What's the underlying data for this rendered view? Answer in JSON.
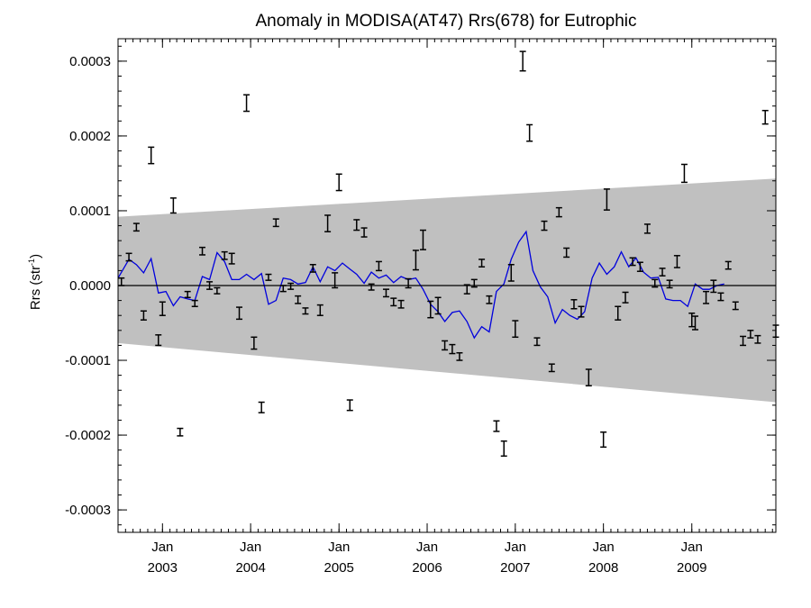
{
  "chart_data": {
    "type": "scatter",
    "title": "Anomaly in MODISA(AT47) Rrs(678) for Eutrophic",
    "ylabel": "Rrs (str",
    "ylabel_sup": "-1",
    "ylabel_close": ")",
    "xlabel": "",
    "xlim": [
      "2002-07-01",
      "2009-12-15"
    ],
    "ylim": [
      -0.00033,
      0.00033
    ],
    "y_ticks": [
      {
        "value": 0.0003,
        "label": "0.0003"
      },
      {
        "value": 0.0002,
        "label": "0.0002"
      },
      {
        "value": 0.0001,
        "label": "0.0001"
      },
      {
        "value": 0.0,
        "label": "0.0000"
      },
      {
        "value": -0.0001,
        "label": "-0.0001"
      },
      {
        "value": -0.0002,
        "label": "-0.0002"
      },
      {
        "value": -0.0003,
        "label": "-0.0003"
      }
    ],
    "x_ticks": [
      {
        "date": "2003-01-01",
        "month": "Jan",
        "year": "2003"
      },
      {
        "date": "2004-01-01",
        "month": "Jan",
        "year": "2004"
      },
      {
        "date": "2005-01-01",
        "month": "Jan",
        "year": "2005"
      },
      {
        "date": "2006-01-01",
        "month": "Jan",
        "year": "2006"
      },
      {
        "date": "2007-01-01",
        "month": "Jan",
        "year": "2007"
      },
      {
        "date": "2008-01-01",
        "month": "Jan",
        "year": "2008"
      },
      {
        "date": "2009-01-01",
        "month": "Jan",
        "year": "2009"
      }
    ],
    "grid": false,
    "zero_line": true,
    "confidence_band": {
      "start": {
        "date": "2002-07-01",
        "upper": 9.2e-05,
        "lower": -7.7e-05
      },
      "end": {
        "date": "2009-12-15",
        "upper": 0.000143,
        "lower": -0.000156
      },
      "color": "#c0c0c0"
    },
    "series": [
      {
        "kind": "errorbar",
        "color": "#000000",
        "points": [
          {
            "date": "2002-07-15",
            "y": 5e-06,
            "err": 5e-06
          },
          {
            "date": "2002-08-15",
            "y": 3.8e-05,
            "err": 5e-06
          },
          {
            "date": "2002-09-15",
            "y": 7.8e-05,
            "err": 5e-06
          },
          {
            "date": "2002-10-15",
            "y": -4e-05,
            "err": 6e-06
          },
          {
            "date": "2002-11-15",
            "y": 0.000174,
            "err": 1.1e-05
          },
          {
            "date": "2002-12-15",
            "y": -7.3e-05,
            "err": 7e-06
          },
          {
            "date": "2003-01-01",
            "y": -3.1e-05,
            "err": 9e-06
          },
          {
            "date": "2003-02-15",
            "y": 0.000107,
            "err": 1e-05
          },
          {
            "date": "2003-03-15",
            "y": -0.000196,
            "err": 5e-06
          },
          {
            "date": "2003-04-15",
            "y": -1.2e-05,
            "err": 4e-06
          },
          {
            "date": "2003-05-15",
            "y": -2.4e-05,
            "err": 4e-06
          },
          {
            "date": "2003-06-15",
            "y": 4.6e-05,
            "err": 5e-06
          },
          {
            "date": "2003-07-15",
            "y": 0.0,
            "err": 5e-06
          },
          {
            "date": "2003-08-15",
            "y": -7e-06,
            "err": 4e-06
          },
          {
            "date": "2003-09-15",
            "y": 4e-05,
            "err": 5e-06
          },
          {
            "date": "2003-10-15",
            "y": 3.6e-05,
            "err": 7e-06
          },
          {
            "date": "2003-11-15",
            "y": -3.7e-05,
            "err": 8e-06
          },
          {
            "date": "2003-12-15",
            "y": 0.000244,
            "err": 1.1e-05
          },
          {
            "date": "2004-01-15",
            "y": -7.7e-05,
            "err": 8e-06
          },
          {
            "date": "2004-02-15",
            "y": -0.000163,
            "err": 7e-06
          },
          {
            "date": "2004-03-15",
            "y": 1.1e-05,
            "err": 4e-06
          },
          {
            "date": "2004-04-15",
            "y": 8.4e-05,
            "err": 5e-06
          },
          {
            "date": "2004-05-15",
            "y": -4e-06,
            "err": 4e-06
          },
          {
            "date": "2004-06-15",
            "y": -1e-06,
            "err": 4e-06
          },
          {
            "date": "2004-07-15",
            "y": -1.9e-05,
            "err": 5e-06
          },
          {
            "date": "2004-08-15",
            "y": -3.4e-05,
            "err": 4e-06
          },
          {
            "date": "2004-09-15",
            "y": 2.3e-05,
            "err": 5e-06
          },
          {
            "date": "2004-10-15",
            "y": -3.3e-05,
            "err": 7e-06
          },
          {
            "date": "2004-11-15",
            "y": 8.3e-05,
            "err": 1.1e-05
          },
          {
            "date": "2004-12-15",
            "y": 7e-06,
            "err": 1e-05
          },
          {
            "date": "2005-01-01",
            "y": 0.000138,
            "err": 1.1e-05
          },
          {
            "date": "2005-02-15",
            "y": -0.00016,
            "err": 7e-06
          },
          {
            "date": "2005-03-15",
            "y": 8.1e-05,
            "err": 7e-06
          },
          {
            "date": "2005-04-15",
            "y": 7.1e-05,
            "err": 6e-06
          },
          {
            "date": "2005-05-15",
            "y": -2e-06,
            "err": 4e-06
          },
          {
            "date": "2005-06-15",
            "y": 2.6e-05,
            "err": 6e-06
          },
          {
            "date": "2005-07-15",
            "y": -1e-05,
            "err": 5e-06
          },
          {
            "date": "2005-08-15",
            "y": -2.2e-05,
            "err": 5e-06
          },
          {
            "date": "2005-09-15",
            "y": -2.5e-05,
            "err": 5e-06
          },
          {
            "date": "2005-10-15",
            "y": 3e-06,
            "err": 6e-06
          },
          {
            "date": "2005-11-15",
            "y": 3.4e-05,
            "err": 1.3e-05
          },
          {
            "date": "2005-12-15",
            "y": 6.1e-05,
            "err": 1.3e-05
          },
          {
            "date": "2006-01-15",
            "y": -3.2e-05,
            "err": 1.1e-05
          },
          {
            "date": "2006-02-15",
            "y": -2.7e-05,
            "err": 1.1e-05
          },
          {
            "date": "2006-03-15",
            "y": -8e-05,
            "err": 6e-06
          },
          {
            "date": "2006-04-15",
            "y": -8.5e-05,
            "err": 6e-06
          },
          {
            "date": "2006-05-15",
            "y": -9.5e-05,
            "err": 5e-06
          },
          {
            "date": "2006-06-15",
            "y": -5e-06,
            "err": 6e-06
          },
          {
            "date": "2006-07-15",
            "y": 3e-06,
            "err": 5e-06
          },
          {
            "date": "2006-08-15",
            "y": 3e-05,
            "err": 5e-06
          },
          {
            "date": "2006-09-15",
            "y": -1.9e-05,
            "err": 5e-06
          },
          {
            "date": "2006-10-15",
            "y": -0.000188,
            "err": 7e-06
          },
          {
            "date": "2006-11-15",
            "y": -0.000218,
            "err": 1e-05
          },
          {
            "date": "2006-12-15",
            "y": 1.7e-05,
            "err": 1.1e-05
          },
          {
            "date": "2007-01-01",
            "y": -5.8e-05,
            "err": 1.1e-05
          },
          {
            "date": "2007-02-01",
            "y": 0.0003,
            "err": 1.3e-05
          },
          {
            "date": "2007-03-01",
            "y": 0.000204,
            "err": 1.1e-05
          },
          {
            "date": "2007-04-01",
            "y": -7.5e-05,
            "err": 5e-06
          },
          {
            "date": "2007-05-01",
            "y": 8e-05,
            "err": 6e-06
          },
          {
            "date": "2007-06-01",
            "y": -0.00011,
            "err": 5e-06
          },
          {
            "date": "2007-07-01",
            "y": 9.8e-05,
            "err": 6e-06
          },
          {
            "date": "2007-08-01",
            "y": 4.4e-05,
            "err": 6e-06
          },
          {
            "date": "2007-09-01",
            "y": -2.5e-05,
            "err": 6e-06
          },
          {
            "date": "2007-10-01",
            "y": -3.5e-05,
            "err": 7e-06
          },
          {
            "date": "2007-11-01",
            "y": -0.000123,
            "err": 1.1e-05
          },
          {
            "date": "2008-01-01",
            "y": -0.000206,
            "err": 1e-05
          },
          {
            "date": "2008-01-15",
            "y": 0.000115,
            "err": 1.4e-05
          },
          {
            "date": "2008-03-01",
            "y": -3.7e-05,
            "err": 9e-06
          },
          {
            "date": "2008-04-01",
            "y": -1.6e-05,
            "err": 7e-06
          },
          {
            "date": "2008-05-01",
            "y": 3.2e-05,
            "err": 5e-06
          },
          {
            "date": "2008-06-01",
            "y": 2.5e-05,
            "err": 6e-06
          },
          {
            "date": "2008-07-01",
            "y": 7.6e-05,
            "err": 6e-06
          },
          {
            "date": "2008-08-01",
            "y": 3e-06,
            "err": 5e-06
          },
          {
            "date": "2008-09-01",
            "y": 1.8e-05,
            "err": 5e-06
          },
          {
            "date": "2008-10-01",
            "y": 2e-06,
            "err": 5e-06
          },
          {
            "date": "2008-11-01",
            "y": 3.2e-05,
            "err": 8e-06
          },
          {
            "date": "2008-12-01",
            "y": 0.00015,
            "err": 1.2e-05
          },
          {
            "date": "2009-01-01",
            "y": -4.6e-05,
            "err": 9e-06
          },
          {
            "date": "2009-01-15",
            "y": -5e-05,
            "err": 9e-06
          },
          {
            "date": "2009-03-01",
            "y": -1.6e-05,
            "err": 8e-06
          },
          {
            "date": "2009-04-01",
            "y": -1e-06,
            "err": 8e-06
          },
          {
            "date": "2009-05-01",
            "y": -1.5e-05,
            "err": 5e-06
          },
          {
            "date": "2009-06-01",
            "y": 2.7e-05,
            "err": 5e-06
          },
          {
            "date": "2009-07-01",
            "y": -2.7e-05,
            "err": 5e-06
          },
          {
            "date": "2009-08-01",
            "y": -7.4e-05,
            "err": 6e-06
          },
          {
            "date": "2009-09-01",
            "y": -6.5e-05,
            "err": 5e-06
          },
          {
            "date": "2009-10-01",
            "y": -7.2e-05,
            "err": 5e-06
          },
          {
            "date": "2009-11-01",
            "y": 0.000225,
            "err": 9e-06
          },
          {
            "date": "2009-12-15",
            "y": -6.1e-05,
            "err": 8e-06
          }
        ]
      },
      {
        "kind": "line",
        "color": "#0000dd",
        "points": [
          {
            "date": "2002-07-01",
            "y": 1e-05
          },
          {
            "date": "2002-08-15",
            "y": 3.5e-05
          },
          {
            "date": "2002-09-15",
            "y": 2.8e-05
          },
          {
            "date": "2002-10-15",
            "y": 1.7e-05
          },
          {
            "date": "2002-11-15",
            "y": 3.6e-05
          },
          {
            "date": "2002-12-15",
            "y": -1e-05
          },
          {
            "date": "2003-01-15",
            "y": -8e-06
          },
          {
            "date": "2003-02-15",
            "y": -2.7e-05
          },
          {
            "date": "2003-03-15",
            "y": -1.5e-05
          },
          {
            "date": "2003-04-15",
            "y": -1.8e-05
          },
          {
            "date": "2003-05-15",
            "y": -2e-05
          },
          {
            "date": "2003-06-15",
            "y": 1.2e-05
          },
          {
            "date": "2003-07-15",
            "y": 8e-06
          },
          {
            "date": "2003-08-15",
            "y": 4.4e-05
          },
          {
            "date": "2003-09-15",
            "y": 3.2e-05
          },
          {
            "date": "2003-10-15",
            "y": 8e-06
          },
          {
            "date": "2003-11-15",
            "y": 8e-06
          },
          {
            "date": "2003-12-15",
            "y": 1.5e-05
          },
          {
            "date": "2004-01-15",
            "y": 8e-06
          },
          {
            "date": "2004-02-15",
            "y": 1.6e-05
          },
          {
            "date": "2004-03-15",
            "y": -2.5e-05
          },
          {
            "date": "2004-04-15",
            "y": -2e-05
          },
          {
            "date": "2004-05-15",
            "y": 1e-05
          },
          {
            "date": "2004-06-15",
            "y": 8e-06
          },
          {
            "date": "2004-07-15",
            "y": 2e-06
          },
          {
            "date": "2004-08-15",
            "y": 4e-06
          },
          {
            "date": "2004-09-15",
            "y": 2.5e-05
          },
          {
            "date": "2004-10-15",
            "y": 5e-06
          },
          {
            "date": "2004-11-15",
            "y": 2.5e-05
          },
          {
            "date": "2004-12-15",
            "y": 2e-05
          },
          {
            "date": "2005-01-15",
            "y": 3e-05
          },
          {
            "date": "2005-02-15",
            "y": 2.2e-05
          },
          {
            "date": "2005-03-15",
            "y": 1.5e-05
          },
          {
            "date": "2005-04-15",
            "y": 3e-06
          },
          {
            "date": "2005-05-15",
            "y": 1.8e-05
          },
          {
            "date": "2005-06-15",
            "y": 1e-05
          },
          {
            "date": "2005-07-15",
            "y": 1.4e-05
          },
          {
            "date": "2005-08-15",
            "y": 4e-06
          },
          {
            "date": "2005-09-15",
            "y": 1.2e-05
          },
          {
            "date": "2005-10-15",
            "y": 8e-06
          },
          {
            "date": "2005-11-15",
            "y": 1e-05
          },
          {
            "date": "2005-12-15",
            "y": -5e-06
          },
          {
            "date": "2006-01-15",
            "y": -2.5e-05
          },
          {
            "date": "2006-02-15",
            "y": -3.5e-05
          },
          {
            "date": "2006-03-15",
            "y": -4.8e-05
          },
          {
            "date": "2006-04-15",
            "y": -3.6e-05
          },
          {
            "date": "2006-05-15",
            "y": -3.4e-05
          },
          {
            "date": "2006-06-15",
            "y": -4.8e-05
          },
          {
            "date": "2006-07-15",
            "y": -7e-05
          },
          {
            "date": "2006-08-15",
            "y": -5.5e-05
          },
          {
            "date": "2006-09-15",
            "y": -6.2e-05
          },
          {
            "date": "2006-10-15",
            "y": -8e-06
          },
          {
            "date": "2006-11-15",
            "y": 2e-06
          },
          {
            "date": "2006-12-15",
            "y": 3.5e-05
          },
          {
            "date": "2007-01-15",
            "y": 5.8e-05
          },
          {
            "date": "2007-02-15",
            "y": 7.2e-05
          },
          {
            "date": "2007-03-15",
            "y": 2e-05
          },
          {
            "date": "2007-04-15",
            "y": -2e-06
          },
          {
            "date": "2007-05-15",
            "y": -1.5e-05
          },
          {
            "date": "2007-06-15",
            "y": -5e-05
          },
          {
            "date": "2007-07-15",
            "y": -3.2e-05
          },
          {
            "date": "2007-08-15",
            "y": -4e-05
          },
          {
            "date": "2007-09-15",
            "y": -4.5e-05
          },
          {
            "date": "2007-10-15",
            "y": -3.5e-05
          },
          {
            "date": "2007-11-15",
            "y": 1e-05
          },
          {
            "date": "2007-12-15",
            "y": 3e-05
          },
          {
            "date": "2008-01-15",
            "y": 1.5e-05
          },
          {
            "date": "2008-02-15",
            "y": 2.5e-05
          },
          {
            "date": "2008-03-15",
            "y": 4.5e-05
          },
          {
            "date": "2008-04-15",
            "y": 2.5e-05
          },
          {
            "date": "2008-05-15",
            "y": 3.7e-05
          },
          {
            "date": "2008-06-15",
            "y": 1.8e-05
          },
          {
            "date": "2008-07-15",
            "y": 1e-05
          },
          {
            "date": "2008-08-15",
            "y": 1.1e-05
          },
          {
            "date": "2008-09-15",
            "y": -1.8e-05
          },
          {
            "date": "2008-10-15",
            "y": -2e-05
          },
          {
            "date": "2008-11-15",
            "y": -2e-05
          },
          {
            "date": "2008-12-15",
            "y": -2.8e-05
          },
          {
            "date": "2009-01-15",
            "y": 2e-06
          },
          {
            "date": "2009-02-15",
            "y": -5e-06
          },
          {
            "date": "2009-03-15",
            "y": -5e-06
          },
          {
            "date": "2009-04-15",
            "y": 0.0
          },
          {
            "date": "2009-05-15",
            "y": 2e-06
          }
        ]
      }
    ]
  }
}
